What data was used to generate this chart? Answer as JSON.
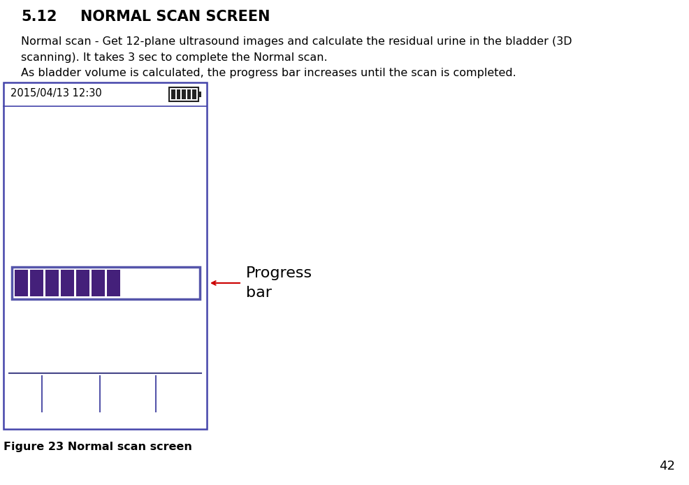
{
  "title_section": "5.12",
  "title_text": "NORMAL SCAN SCREEN",
  "body_text_line1": "Normal scan - Get 12-plane ultrasound images and calculate the residual urine in the bladder (3D",
  "body_text_line2": "scanning). It takes 3 sec to complete the Normal scan.",
  "body_text_line3": "As bladder volume is calculated, the progress bar increases until the scan is completed.",
  "datetime_text": "2015/04/13 12:30",
  "figure_caption": "Figure 23 Normal scan screen",
  "progress_label_line1": "Progress",
  "progress_label_line2": "bar",
  "page_number": "42",
  "screen_border_color": "#4444aa",
  "screen_bg_color": "#ffffff",
  "progress_bar_border_color": "#5555aa",
  "progress_block_color": "#44207a",
  "progress_block_count": 7,
  "progress_total_blocks": 12,
  "battery_bar_color": "#222222",
  "arrow_color": "#cc0000",
  "bottom_line_color": "#444488",
  "tick_color": "#5555aa"
}
